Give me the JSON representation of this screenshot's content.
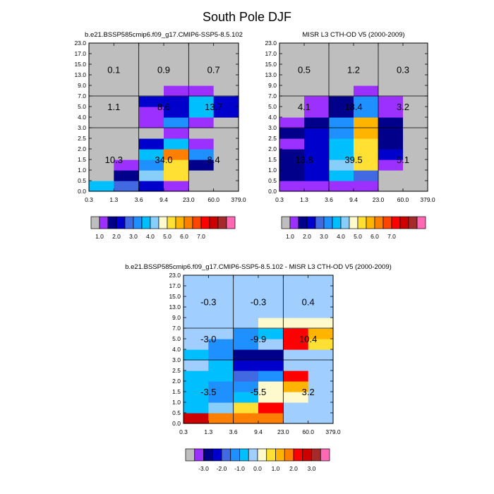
{
  "page_title": "South Pole DJF",
  "chart_data": [
    {
      "type": "heatmap",
      "id": "model",
      "title": "b.e21.BSSP585cmip6.f09_g17.CMIP6-SSP5-8.5.102",
      "xlabel": "",
      "ylabel": "",
      "x_tick_labels": [
        "0.3",
        "1.3",
        "3.6",
        "9.4",
        "23.0",
        "60.0",
        "379.0"
      ],
      "y_tick_labels": [
        "0.0",
        "0.5",
        "1.0",
        "1.5",
        "2.0",
        "2.5",
        "3.0",
        "4.0",
        "5.0",
        "7.0",
        "9.0",
        "13.0",
        "15.0",
        "17.0",
        "23.0"
      ],
      "cells": [
        [
          "#00bfff",
          "#4169e1",
          "#0000cd",
          "#9b30ff",
          "#bebebe",
          "#bebebe"
        ],
        [
          "#bebebe",
          "#00008b",
          "#87cefa",
          "#ffe033",
          "#bebebe",
          "#bebebe"
        ],
        [
          "#bebebe",
          "#9b30ff",
          "#1e90ff",
          "#ffe033",
          "#00008b",
          "#bebebe"
        ],
        [
          "#bebebe",
          "#bebebe",
          "#00bfff",
          "#ff7f00",
          "#1e90ff",
          "#bebebe"
        ],
        [
          "#bebebe",
          "#bebebe",
          "#0000cd",
          "#00bfff",
          "#9b30ff",
          "#bebebe"
        ],
        [
          "#bebebe",
          "#bebebe",
          "#bebebe",
          "#9b30ff",
          "#bebebe",
          "#bebebe"
        ],
        [
          "#bebebe",
          "#bebebe",
          "#9b30ff",
          "#1e90ff",
          "#9b30ff",
          "#bebebe"
        ],
        [
          "#bebebe",
          "#bebebe",
          "#9b30ff",
          "#0000cd",
          "#00bfff",
          "#0000cd"
        ],
        [
          "#bebebe",
          "#bebebe",
          "#0000cd",
          "#0000cd",
          "#00bfff",
          "#0000cd"
        ],
        [
          "#bebebe",
          "#bebebe",
          "#bebebe",
          "#9b30ff",
          "#9b30ff",
          "#bebebe"
        ],
        [
          "#bebebe",
          "#bebebe",
          "#bebebe",
          "#bebebe",
          "#bebebe",
          "#bebebe"
        ],
        [
          "#bebebe",
          "#bebebe",
          "#bebebe",
          "#bebebe",
          "#bebebe",
          "#bebebe"
        ],
        [
          "#bebebe",
          "#bebebe",
          "#bebebe",
          "#bebebe",
          "#bebebe",
          "#bebebe"
        ],
        [
          "#bebebe",
          "#bebebe",
          "#bebebe",
          "#bebebe",
          "#bebebe",
          "#bebebe"
        ]
      ],
      "annotations": [
        {
          "text": "10.3",
          "col": 0.5,
          "row": 3
        },
        {
          "text": "34.0",
          "col": 1.5,
          "row": 3
        },
        {
          "text": "8.4",
          "col": 2.5,
          "row": 3
        },
        {
          "text": "1.1",
          "col": 0.5,
          "row": 8
        },
        {
          "text": "8.6",
          "col": 1.5,
          "row": 8
        },
        {
          "text": "13.7",
          "col": 2.5,
          "row": 8
        },
        {
          "text": "0.1",
          "col": 0.5,
          "row": 11.5
        },
        {
          "text": "0.9",
          "col": 1.5,
          "row": 11.5
        },
        {
          "text": "0.7",
          "col": 2.5,
          "row": 11.5
        }
      ]
    },
    {
      "type": "heatmap",
      "id": "obs",
      "title": "MISR L3 CTH-OD V5 (2000-2009)",
      "xlabel": "",
      "ylabel": "",
      "x_tick_labels": [
        "0.3",
        "1.3",
        "3.6",
        "9.4",
        "23.0",
        "60.0",
        "379.0"
      ],
      "y_tick_labels": [
        "0.0",
        "0.5",
        "1.0",
        "1.5",
        "2.0",
        "2.5",
        "3.0",
        "4.0",
        "5.0",
        "7.0",
        "9.0",
        "13.0",
        "15.0",
        "17.0",
        "23.0"
      ],
      "cells": [
        [
          "#9b30ff",
          "#9b30ff",
          "#9b30ff",
          "#9b30ff",
          "#bebebe",
          "#bebebe"
        ],
        [
          "#00008b",
          "#0000cd",
          "#00bfff",
          "#4169e1",
          "#bebebe",
          "#bebebe"
        ],
        [
          "#00008b",
          "#0000cd",
          "#87cefa",
          "#ffe033",
          "#9b30ff",
          "#bebebe"
        ],
        [
          "#00008b",
          "#0000cd",
          "#00bfff",
          "#ffe033",
          "#0000cd",
          "#bebebe"
        ],
        [
          "#9b30ff",
          "#0000cd",
          "#00bfff",
          "#ffe033",
          "#00008b",
          "#bebebe"
        ],
        [
          "#00008b",
          "#0000cd",
          "#1e90ff",
          "#ffb400",
          "#00008b",
          "#bebebe"
        ],
        [
          "#9b30ff",
          "#00008b",
          "#1e90ff",
          "#ffb400",
          "#00008b",
          "#bebebe"
        ],
        [
          "#bebebe",
          "#9b30ff",
          "#00008b",
          "#1e90ff",
          "#9b30ff",
          "#bebebe"
        ],
        [
          "#bebebe",
          "#9b30ff",
          "#00008b",
          "#1e90ff",
          "#9b30ff",
          "#bebebe"
        ],
        [
          "#bebebe",
          "#bebebe",
          "#bebebe",
          "#9b30ff",
          "#bebebe",
          "#bebebe"
        ],
        [
          "#bebebe",
          "#bebebe",
          "#bebebe",
          "#bebebe",
          "#bebebe",
          "#bebebe"
        ],
        [
          "#bebebe",
          "#bebebe",
          "#bebebe",
          "#bebebe",
          "#bebebe",
          "#bebebe"
        ],
        [
          "#bebebe",
          "#bebebe",
          "#bebebe",
          "#bebebe",
          "#bebebe",
          "#bebebe"
        ],
        [
          "#bebebe",
          "#bebebe",
          "#bebebe",
          "#bebebe",
          "#bebebe",
          "#bebebe"
        ]
      ],
      "annotations": [
        {
          "text": "13.8",
          "col": 0.5,
          "row": 3
        },
        {
          "text": "39.5",
          "col": 1.5,
          "row": 3
        },
        {
          "text": "5.1",
          "col": 2.5,
          "row": 3
        },
        {
          "text": "4.1",
          "col": 0.5,
          "row": 8
        },
        {
          "text": "18.4",
          "col": 1.5,
          "row": 8
        },
        {
          "text": "3.2",
          "col": 2.5,
          "row": 8
        },
        {
          "text": "0.5",
          "col": 0.5,
          "row": 11.5
        },
        {
          "text": "1.2",
          "col": 1.5,
          "row": 11.5
        },
        {
          "text": "0.3",
          "col": 2.5,
          "row": 11.5
        }
      ]
    },
    {
      "type": "heatmap",
      "id": "diff",
      "title": "b.e21.BSSP585cmip6.f09_g17.CMIP6-SSP5-8.5.102 - MISR L3 CTH-OD V5 (2000-2009)",
      "xlabel": "",
      "ylabel": "",
      "x_tick_labels": [
        "0.3",
        "1.3",
        "3.6",
        "9.4",
        "23.0",
        "60.0",
        "379.0"
      ],
      "y_tick_labels": [
        "0.0",
        "0.5",
        "1.0",
        "1.5",
        "2.0",
        "2.5",
        "3.0",
        "4.0",
        "5.0",
        "7.0",
        "9.0",
        "13.0",
        "15.0",
        "17.0",
        "23.0"
      ],
      "cells": [
        [
          "#cd0000",
          "#ff7f00",
          "#ff7f00",
          "#ff7f00",
          "#a0cfff",
          "#a0cfff"
        ],
        [
          "#00bfff",
          "#87cefa",
          "#ffe033",
          "#ff0000",
          "#a0cfff",
          "#a0cfff"
        ],
        [
          "#00bfff",
          "#1e90ff",
          "#00bfff",
          "#fffacd",
          "#fffacd",
          "#a0cfff"
        ],
        [
          "#00bfff",
          "#1e90ff",
          "#1e90ff",
          "#fffacd",
          "#ffb400",
          "#a0cfff"
        ],
        [
          "#00bfff",
          "#00bfff",
          "#4169e1",
          "#1e90ff",
          "#ff0000",
          "#a0cfff"
        ],
        [
          "#a0cfff",
          "#00bfff",
          "#0000cd",
          "#0000cd",
          "#a0cfff",
          "#a0cfff"
        ],
        [
          "#00bfff",
          "#1e90ff",
          "#00008b",
          "#00008b",
          "#a0cfff",
          "#a0cfff"
        ],
        [
          "#a0cfff",
          "#1e90ff",
          "#1e90ff",
          "#a0cfff",
          "#ff0000",
          "#ffe033"
        ],
        [
          "#a0cfff",
          "#a0cfff",
          "#1e90ff",
          "#00bfff",
          "#ff0000",
          "#ffb400"
        ],
        [
          "#a0cfff",
          "#a0cfff",
          "#a0cfff",
          "#fffacd",
          "#fffacd",
          "#fffacd"
        ],
        [
          "#a0cfff",
          "#a0cfff",
          "#a0cfff",
          "#a0cfff",
          "#a0cfff",
          "#a0cfff"
        ],
        [
          "#a0cfff",
          "#a0cfff",
          "#a0cfff",
          "#a0cfff",
          "#a0cfff",
          "#a0cfff"
        ],
        [
          "#a0cfff",
          "#a0cfff",
          "#a0cfff",
          "#a0cfff",
          "#a0cfff",
          "#a0cfff"
        ],
        [
          "#a0cfff",
          "#a0cfff",
          "#a0cfff",
          "#a0cfff",
          "#a0cfff",
          "#a0cfff"
        ]
      ],
      "annotations": [
        {
          "text": "-3.5",
          "col": 0.5,
          "row": 3
        },
        {
          "text": "-5.5",
          "col": 1.5,
          "row": 3
        },
        {
          "text": "3.2",
          "col": 2.5,
          "row": 3
        },
        {
          "text": "-3.0",
          "col": 0.5,
          "row": 8
        },
        {
          "text": "-9.9",
          "col": 1.5,
          "row": 8
        },
        {
          "text": "10.4",
          "col": 2.5,
          "row": 8
        },
        {
          "text": "-0.3",
          "col": 0.5,
          "row": 11.5
        },
        {
          "text": "-0.3",
          "col": 1.5,
          "row": 11.5
        },
        {
          "text": "0.4",
          "col": 2.5,
          "row": 11.5
        }
      ]
    }
  ],
  "colorbars": [
    {
      "id": "abs",
      "colors": [
        "#bebebe",
        "#9b30ff",
        "#00008b",
        "#0000cd",
        "#4169e1",
        "#1e90ff",
        "#00bfff",
        "#87cefa",
        "#fffacd",
        "#ffe033",
        "#ffb400",
        "#ff7f00",
        "#ff4500",
        "#ff0000",
        "#cd0000",
        "#a52a2a",
        "#ff69b4"
      ],
      "labels": [
        {
          "text": "1.0",
          "after": 1
        },
        {
          "text": "2.0",
          "after": 3
        },
        {
          "text": "3.0",
          "after": 5
        },
        {
          "text": "4.0",
          "after": 7
        },
        {
          "text": "5.0",
          "after": 9
        },
        {
          "text": "6.0",
          "after": 11
        },
        {
          "text": "7.0",
          "after": 13
        }
      ]
    },
    {
      "id": "diff",
      "colors": [
        "#bebebe",
        "#9b30ff",
        "#00008b",
        "#0000cd",
        "#4169e1",
        "#1e90ff",
        "#00bfff",
        "#a0cfff",
        "#fffacd",
        "#ffe033",
        "#ffb400",
        "#ff7f00",
        "#ff0000",
        "#cd0000",
        "#a52a2a",
        "#ff69b4"
      ],
      "labels": [
        {
          "text": "-3.0",
          "after": 2
        },
        {
          "text": "-2.0",
          "after": 4
        },
        {
          "text": "-1.0",
          "after": 6
        },
        {
          "text": "0.0",
          "after": 8
        },
        {
          "text": "1.0",
          "after": 10
        },
        {
          "text": "2.0",
          "after": 12
        },
        {
          "text": "3.0",
          "after": 14
        }
      ]
    }
  ]
}
